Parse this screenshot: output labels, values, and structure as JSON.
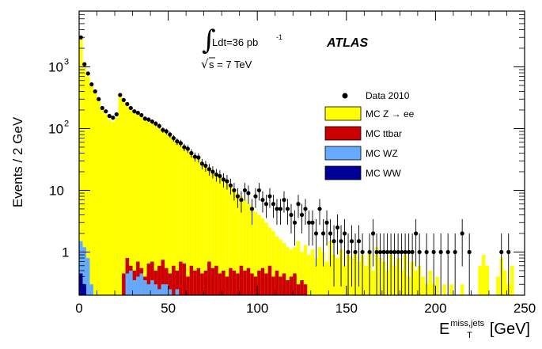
{
  "chart_data": {
    "type": "histogram",
    "ylabel": "Events / 2 GeV",
    "xlabel": {
      "base": "E",
      "sup": "miss,jets",
      "sub": "T",
      "unit": "[GeV]"
    },
    "xlim": [
      0,
      250
    ],
    "ylim_log": [
      0.2,
      8000
    ],
    "y_scale": "log",
    "x_ticks": [
      0,
      50,
      100,
      150,
      200,
      250
    ],
    "y_ticks": [
      {
        "value": 1000,
        "label": "10",
        "sup": "3"
      },
      {
        "value": 100,
        "label": "10",
        "sup": "2"
      },
      {
        "value": 10,
        "label": "10",
        "sup": ""
      },
      {
        "value": 1,
        "label": "1",
        "sup": ""
      }
    ],
    "annotations": {
      "lumi": "Ldt=36 pb",
      "lumi_sup": "-1",
      "energy": "s = 7 TeV",
      "experiment": "ATLAS"
    },
    "legend": {
      "placement": "top-right",
      "entries": [
        {
          "label": "Data 2010",
          "kind": "marker",
          "color": "#000000"
        },
        {
          "label": "MC Z → ee",
          "kind": "fill",
          "color": "#ffff00"
        },
        {
          "label": "MC ttbar",
          "kind": "fill",
          "color": "#cc0000"
        },
        {
          "label": "MC WZ",
          "kind": "fill",
          "color": "#66aaff"
        },
        {
          "label": "MC WW",
          "kind": "fill",
          "color": "#000099"
        }
      ]
    },
    "bin_width": 2,
    "series": [
      {
        "name": "MC Z → ee",
        "color": "#ffff00",
        "values": [
          3000,
          1200,
          700,
          520,
          400,
          280,
          200,
          170,
          140,
          130,
          150,
          330,
          280,
          240,
          220,
          195,
          175,
          160,
          150,
          135,
          120,
          110,
          100,
          90,
          82,
          75,
          68,
          60,
          55,
          50,
          45,
          40,
          36,
          32,
          28,
          25,
          22,
          20,
          18,
          16,
          14,
          13,
          12,
          10,
          9,
          8,
          7,
          6,
          5.5,
          4.5,
          4,
          3.5,
          3,
          2.5,
          2.2,
          1.8,
          1.6,
          1.4,
          1.2,
          1.1,
          1.2,
          1.5,
          1.0,
          1.3,
          0.9,
          1.1,
          0.8,
          1.2,
          1.0,
          0.7,
          1.5,
          0.9,
          0.8,
          1.1,
          0.6,
          0.9,
          0.8,
          1.0,
          0.7,
          0.9,
          0.6,
          1.0,
          0.5,
          1.2,
          0.8,
          0.7,
          0.5,
          0.9,
          0.6,
          0.8,
          0.5,
          0.9,
          0.4,
          0.7,
          0.5,
          0.6,
          0.4,
          0.3,
          0.5,
          0.3,
          0.4,
          0.2,
          0.3,
          0.2,
          0.3,
          0.2,
          0.2,
          0.3,
          0.2,
          0.2,
          0.2,
          0.2,
          0.6,
          0.9,
          0.6,
          0.2,
          0.2,
          0.4,
          0.8,
          0.5,
          0.3,
          0.6,
          0.2,
          0.2,
          0.2,
          0.2,
          0.2,
          0.2,
          0.2
        ]
      },
      {
        "name": "MC ttbar",
        "color": "#cc0000",
        "values": [
          0,
          0,
          0,
          0,
          0,
          0,
          0,
          0,
          0,
          0,
          0,
          0,
          0.45,
          0.8,
          0.6,
          0.5,
          0.7,
          0.55,
          0.4,
          0.65,
          0.7,
          0.5,
          0.6,
          0.75,
          0.55,
          0.45,
          0.6,
          0.5,
          0.7,
          0.65,
          0.4,
          0.6,
          0.5,
          0.55,
          0.45,
          0.5,
          0.7,
          0.55,
          0.6,
          0.45,
          0.5,
          0.4,
          0.55,
          0.5,
          0.45,
          0.6,
          0.5,
          0.55,
          0.45,
          0.4,
          0.5,
          0.55,
          0.45,
          0.6,
          0.4,
          0.5,
          0.4,
          0.45,
          0.35,
          0.4,
          0.45,
          0.3,
          0.35,
          0.3,
          0,
          0,
          0
        ]
      },
      {
        "name": "MC WZ",
        "color": "#66aaff",
        "values": [
          1.5,
          1.2,
          0.8,
          0.3,
          0.2,
          0.2,
          0.2,
          0.2,
          0.2,
          0.2,
          0.2,
          0.2,
          0.2,
          0.45,
          0.5,
          0.35,
          0.4,
          0.45,
          0.35,
          0.3,
          0.35,
          0.3,
          0.25,
          0.3,
          0.3,
          0.25,
          0.2,
          0.25,
          0.2,
          0.2,
          0.2,
          0.2
        ]
      },
      {
        "name": "MC WW",
        "color": "#000099",
        "values": [
          0.45,
          0.3,
          0.2
        ]
      }
    ],
    "data": [
      [
        1,
        3000
      ],
      [
        3,
        1100
      ],
      [
        5,
        780
      ],
      [
        7,
        520
      ],
      [
        9,
        400
      ],
      [
        11,
        300
      ],
      [
        13,
        215
      ],
      [
        15,
        190
      ],
      [
        17,
        160
      ],
      [
        19,
        150
      ],
      [
        21,
        170
      ],
      [
        23,
        350
      ],
      [
        25,
        290
      ],
      [
        27,
        250
      ],
      [
        29,
        215
      ],
      [
        31,
        190
      ],
      [
        33,
        180
      ],
      [
        35,
        165
      ],
      [
        37,
        145
      ],
      [
        39,
        140
      ],
      [
        41,
        130
      ],
      [
        43,
        120
      ],
      [
        45,
        110
      ],
      [
        47,
        95
      ],
      [
        49,
        90
      ],
      [
        51,
        80
      ],
      [
        53,
        70
      ],
      [
        55,
        62
      ],
      [
        57,
        58
      ],
      [
        59,
        50
      ],
      [
        61,
        47
      ],
      [
        63,
        40
      ],
      [
        65,
        35
      ],
      [
        67,
        34
      ],
      [
        69,
        27
      ],
      [
        71,
        25
      ],
      [
        73,
        22
      ],
      [
        75,
        20
      ],
      [
        77,
        18
      ],
      [
        79,
        17
      ],
      [
        81,
        15
      ],
      [
        83,
        14
      ],
      [
        85,
        12
      ],
      [
        87,
        10
      ],
      [
        89,
        8
      ],
      [
        91,
        7
      ],
      [
        93,
        10
      ],
      [
        95,
        9
      ],
      [
        97,
        5
      ],
      [
        99,
        8
      ],
      [
        101,
        10
      ],
      [
        103,
        7
      ],
      [
        105,
        6
      ],
      [
        107,
        8
      ],
      [
        109,
        6
      ],
      [
        111,
        5
      ],
      [
        113,
        5
      ],
      [
        115,
        7
      ],
      [
        117,
        5
      ],
      [
        119,
        4
      ],
      [
        121,
        3
      ],
      [
        123,
        6
      ],
      [
        125,
        4
      ],
      [
        127,
        5
      ],
      [
        129,
        3
      ],
      [
        131,
        3
      ],
      [
        133,
        2
      ],
      [
        135,
        5
      ],
      [
        137,
        2
      ],
      [
        139,
        3
      ],
      [
        141,
        2
      ],
      [
        143,
        1.5
      ],
      [
        145,
        2.5
      ],
      [
        147,
        1.5
      ],
      [
        149,
        2
      ],
      [
        151,
        1
      ],
      [
        153,
        1.5
      ],
      [
        155,
        1
      ],
      [
        157,
        1.5
      ],
      [
        159,
        1
      ],
      [
        163,
        1
      ],
      [
        165,
        2
      ],
      [
        167,
        1
      ],
      [
        169,
        1
      ],
      [
        171,
        1
      ],
      [
        173,
        1
      ],
      [
        175,
        1
      ],
      [
        177,
        1
      ],
      [
        179,
        1
      ],
      [
        181,
        1
      ],
      [
        183,
        1
      ],
      [
        185,
        1
      ],
      [
        187,
        1
      ],
      [
        189,
        2
      ],
      [
        191,
        1
      ],
      [
        195,
        1
      ],
      [
        199,
        1
      ],
      [
        203,
        1
      ],
      [
        207,
        1
      ],
      [
        211,
        1
      ],
      [
        215,
        2
      ],
      [
        219,
        1
      ],
      [
        237,
        1
      ],
      [
        241,
        1
      ]
    ]
  }
}
